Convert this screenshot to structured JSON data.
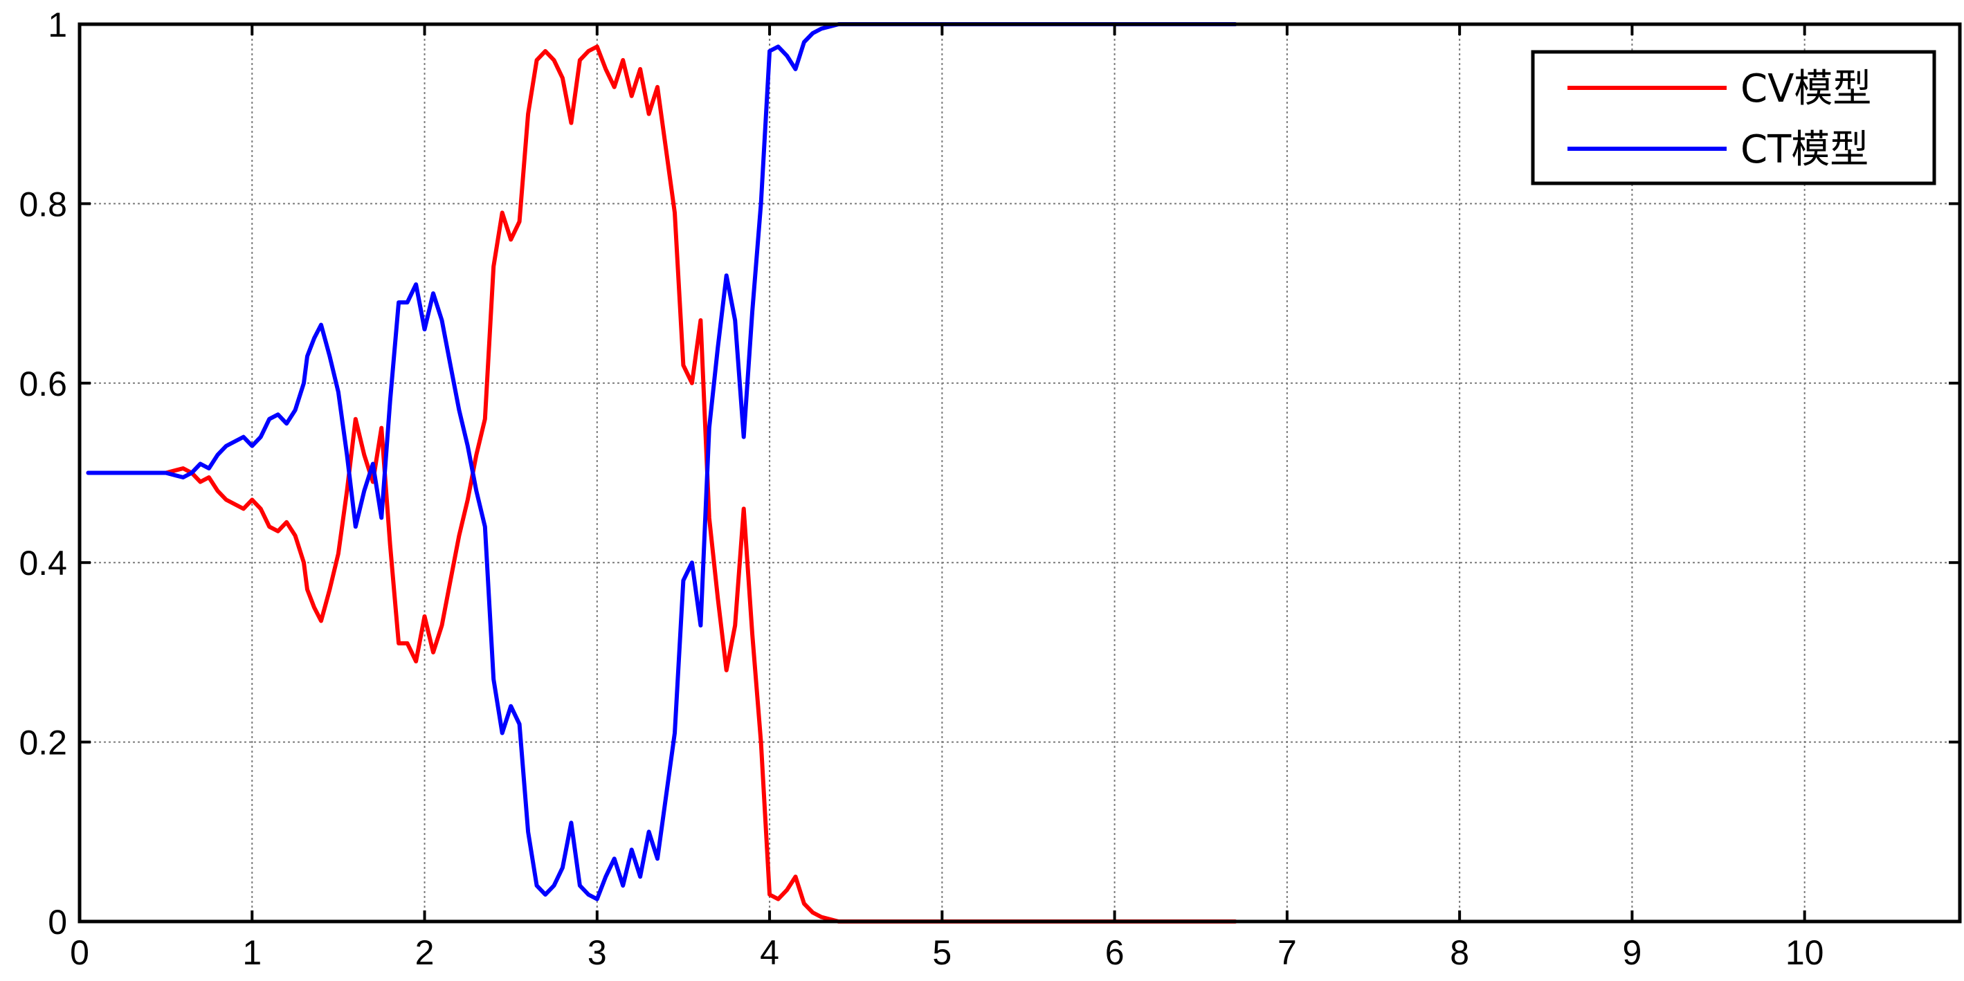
{
  "chart_data": {
    "type": "line",
    "title": "",
    "xlabel": "",
    "ylabel": "",
    "xlim": [
      0,
      10.9
    ],
    "ylim": [
      0,
      1
    ],
    "x_ticks": [
      0,
      1,
      2,
      3,
      4,
      5,
      6,
      7,
      8,
      9,
      10
    ],
    "x_tick_labels": [
      "0",
      "1",
      "2",
      "3",
      "4",
      "5",
      "6",
      "7",
      "8",
      "9",
      "10"
    ],
    "y_ticks": [
      0,
      0.2,
      0.4,
      0.6,
      0.8,
      1
    ],
    "y_tick_labels": [
      "0",
      "0.2",
      "0.4",
      "0.6",
      "0.8",
      "1"
    ],
    "grid": true,
    "legend_position": "top-right",
    "series": [
      {
        "name": "CV模型",
        "color": "#ff0000",
        "x": [
          0.05,
          0.3,
          0.5,
          0.6,
          0.65,
          0.7,
          0.75,
          0.8,
          0.85,
          0.9,
          0.95,
          1.0,
          1.05,
          1.1,
          1.15,
          1.2,
          1.25,
          1.3,
          1.32,
          1.36,
          1.4,
          1.45,
          1.5,
          1.55,
          1.6,
          1.65,
          1.7,
          1.75,
          1.8,
          1.85,
          1.9,
          1.95,
          2.0,
          2.05,
          2.1,
          2.15,
          2.2,
          2.25,
          2.3,
          2.35,
          2.4,
          2.45,
          2.5,
          2.55,
          2.6,
          2.65,
          2.7,
          2.75,
          2.8,
          2.85,
          2.9,
          2.95,
          3.0,
          3.05,
          3.1,
          3.15,
          3.2,
          3.25,
          3.3,
          3.35,
          3.4,
          3.45,
          3.5,
          3.55,
          3.6,
          3.65,
          3.7,
          3.75,
          3.8,
          3.85,
          3.9,
          3.95,
          4.0,
          4.05,
          4.1,
          4.15,
          4.2,
          4.25,
          4.3,
          4.4,
          5.0,
          6.0,
          6.7
        ],
        "values": [
          0.5,
          0.5,
          0.5,
          0.505,
          0.5,
          0.49,
          0.495,
          0.48,
          0.47,
          0.465,
          0.46,
          0.47,
          0.46,
          0.44,
          0.435,
          0.445,
          0.43,
          0.4,
          0.37,
          0.35,
          0.335,
          0.37,
          0.41,
          0.48,
          0.56,
          0.52,
          0.49,
          0.55,
          0.42,
          0.31,
          0.31,
          0.29,
          0.34,
          0.3,
          0.33,
          0.38,
          0.43,
          0.47,
          0.52,
          0.56,
          0.73,
          0.79,
          0.76,
          0.78,
          0.9,
          0.96,
          0.97,
          0.96,
          0.94,
          0.89,
          0.96,
          0.97,
          0.975,
          0.95,
          0.93,
          0.96,
          0.92,
          0.95,
          0.9,
          0.93,
          0.86,
          0.79,
          0.62,
          0.6,
          0.67,
          0.45,
          0.36,
          0.28,
          0.33,
          0.46,
          0.32,
          0.2,
          0.03,
          0.025,
          0.035,
          0.05,
          0.02,
          0.01,
          0.005,
          0.0,
          0.0,
          0.0,
          0.0
        ]
      },
      {
        "name": "CT模型",
        "color": "#0000ff",
        "x": [
          0.05,
          0.3,
          0.5,
          0.6,
          0.65,
          0.7,
          0.75,
          0.8,
          0.85,
          0.9,
          0.95,
          1.0,
          1.05,
          1.1,
          1.15,
          1.2,
          1.25,
          1.3,
          1.32,
          1.36,
          1.4,
          1.45,
          1.5,
          1.55,
          1.6,
          1.65,
          1.7,
          1.75,
          1.8,
          1.85,
          1.9,
          1.95,
          2.0,
          2.05,
          2.1,
          2.15,
          2.2,
          2.25,
          2.3,
          2.35,
          2.4,
          2.45,
          2.5,
          2.55,
          2.6,
          2.65,
          2.7,
          2.75,
          2.8,
          2.85,
          2.9,
          2.95,
          3.0,
          3.05,
          3.1,
          3.15,
          3.2,
          3.25,
          3.3,
          3.35,
          3.4,
          3.45,
          3.5,
          3.55,
          3.6,
          3.65,
          3.7,
          3.75,
          3.8,
          3.85,
          3.9,
          3.95,
          4.0,
          4.05,
          4.1,
          4.15,
          4.2,
          4.25,
          4.3,
          4.4,
          5.0,
          6.0,
          6.7
        ],
        "values": [
          0.5,
          0.5,
          0.5,
          0.495,
          0.5,
          0.51,
          0.505,
          0.52,
          0.53,
          0.535,
          0.54,
          0.53,
          0.54,
          0.56,
          0.565,
          0.555,
          0.57,
          0.6,
          0.63,
          0.65,
          0.665,
          0.63,
          0.59,
          0.52,
          0.44,
          0.48,
          0.51,
          0.45,
          0.58,
          0.69,
          0.69,
          0.71,
          0.66,
          0.7,
          0.67,
          0.62,
          0.57,
          0.53,
          0.48,
          0.44,
          0.27,
          0.21,
          0.24,
          0.22,
          0.1,
          0.04,
          0.03,
          0.04,
          0.06,
          0.11,
          0.04,
          0.03,
          0.025,
          0.05,
          0.07,
          0.04,
          0.08,
          0.05,
          0.1,
          0.07,
          0.14,
          0.21,
          0.38,
          0.4,
          0.33,
          0.55,
          0.64,
          0.72,
          0.67,
          0.54,
          0.68,
          0.8,
          0.97,
          0.975,
          0.965,
          0.95,
          0.98,
          0.99,
          0.995,
          1.0,
          1.0,
          1.0,
          1.0
        ]
      }
    ]
  }
}
